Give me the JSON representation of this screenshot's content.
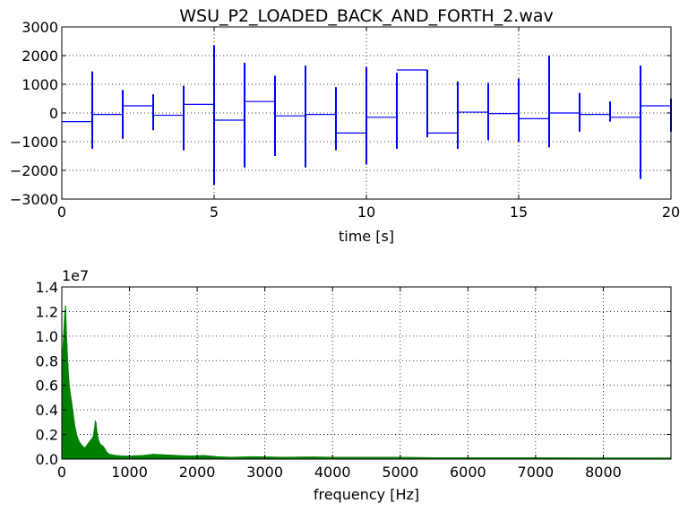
{
  "chart_data": [
    {
      "type": "line",
      "title": "WSU_P2_LOADED_BACK_AND_FORTH_2.wav",
      "xlabel": "time [s]",
      "ylabel": "",
      "xlim": [
        0,
        20
      ],
      "ylim": [
        -3000,
        3000
      ],
      "xticks": [
        "0",
        "5",
        "10",
        "15",
        "20"
      ],
      "yticks": [
        "−3000",
        "−2000",
        "−1000",
        "0",
        "1000",
        "2000",
        "3000"
      ],
      "grid": true,
      "color": "#0000ff",
      "segments": [
        {
          "x0": 0,
          "x1": 1,
          "level": -300
        },
        {
          "x0": 1,
          "x1": 2,
          "level": -50
        },
        {
          "x0": 2,
          "x1": 3,
          "level": 250
        },
        {
          "x0": 3,
          "x1": 4,
          "level": -80
        },
        {
          "x0": 4,
          "x1": 5,
          "level": 300
        },
        {
          "x0": 5,
          "x1": 6,
          "level": -250
        },
        {
          "x0": 6,
          "x1": 7,
          "level": 400
        },
        {
          "x0": 7,
          "x1": 8,
          "level": -100
        },
        {
          "x0": 8,
          "x1": 9,
          "level": -50
        },
        {
          "x0": 9,
          "x1": 10,
          "level": -700
        },
        {
          "x0": 10,
          "x1": 11,
          "level": -150
        },
        {
          "x0": 11,
          "x1": 12,
          "level": 1500
        },
        {
          "x0": 12,
          "x1": 13,
          "level": -700
        },
        {
          "x0": 13,
          "x1": 14,
          "level": 30
        },
        {
          "x0": 14,
          "x1": 15,
          "level": -20
        },
        {
          "x0": 15,
          "x1": 16,
          "level": -200
        },
        {
          "x0": 16,
          "x1": 17,
          "level": 0
        },
        {
          "x0": 17,
          "x1": 18,
          "level": -50
        },
        {
          "x0": 18,
          "x1": 19,
          "level": -150
        },
        {
          "x0": 19,
          "x1": 20,
          "level": 250
        }
      ],
      "spikes": [
        {
          "x": 1,
          "min": -1250,
          "max": 1450
        },
        {
          "x": 2,
          "min": -900,
          "max": 800
        },
        {
          "x": 3,
          "min": -600,
          "max": 650
        },
        {
          "x": 4,
          "min": -1300,
          "max": 950
        },
        {
          "x": 5,
          "min": -2500,
          "max": 2350
        },
        {
          "x": 6,
          "min": -1900,
          "max": 1750
        },
        {
          "x": 7,
          "min": -1500,
          "max": 1300
        },
        {
          "x": 8,
          "min": -1900,
          "max": 1650
        },
        {
          "x": 9,
          "min": -1300,
          "max": 900
        },
        {
          "x": 10,
          "min": -1800,
          "max": 1600
        },
        {
          "x": 11,
          "min": -1250,
          "max": 1400
        },
        {
          "x": 12,
          "min": -850,
          "max": 1500
        },
        {
          "x": 13,
          "min": -1250,
          "max": 1100
        },
        {
          "x": 14,
          "min": -950,
          "max": 1050
        },
        {
          "x": 15,
          "min": -1000,
          "max": 1200
        },
        {
          "x": 16,
          "min": -1200,
          "max": 2000
        },
        {
          "x": 17,
          "min": -650,
          "max": 700
        },
        {
          "x": 18,
          "min": -300,
          "max": 400
        },
        {
          "x": 19,
          "min": -2300,
          "max": 1650
        },
        {
          "x": 20,
          "min": -650,
          "max": 500
        }
      ]
    },
    {
      "type": "area",
      "title": "",
      "xlabel": "frequency [Hz]",
      "ylabel": "",
      "offset_label": "1e7",
      "xlim": [
        0,
        9000
      ],
      "ylim": [
        0,
        1.4
      ],
      "xticks": [
        "0",
        "1000",
        "2000",
        "3000",
        "4000",
        "5000",
        "6000",
        "7000",
        "8000"
      ],
      "yticks": [
        "0.0",
        "0.2",
        "0.4",
        "0.6",
        "0.8",
        "1.0",
        "1.2",
        "1.4"
      ],
      "grid": true,
      "color": "#008000",
      "envelope": [
        [
          0,
          0.45
        ],
        [
          15,
          0.9
        ],
        [
          30,
          1.05
        ],
        [
          45,
          1.2
        ],
        [
          55,
          1.25
        ],
        [
          65,
          1.1
        ],
        [
          75,
          0.95
        ],
        [
          90,
          0.78
        ],
        [
          110,
          0.6
        ],
        [
          130,
          0.52
        ],
        [
          150,
          0.45
        ],
        [
          180,
          0.32
        ],
        [
          200,
          0.25
        ],
        [
          230,
          0.18
        ],
        [
          260,
          0.14
        ],
        [
          300,
          0.11
        ],
        [
          340,
          0.09
        ],
        [
          380,
          0.12
        ],
        [
          420,
          0.15
        ],
        [
          460,
          0.18
        ],
        [
          480,
          0.24
        ],
        [
          495,
          0.31
        ],
        [
          505,
          0.3
        ],
        [
          520,
          0.22
        ],
        [
          545,
          0.15
        ],
        [
          570,
          0.12
        ],
        [
          600,
          0.11
        ],
        [
          630,
          0.09
        ],
        [
          660,
          0.06
        ],
        [
          700,
          0.04
        ],
        [
          800,
          0.03
        ],
        [
          900,
          0.025
        ],
        [
          1000,
          0.025
        ],
        [
          1200,
          0.03
        ],
        [
          1350,
          0.04
        ],
        [
          1500,
          0.035
        ],
        [
          1700,
          0.03
        ],
        [
          1900,
          0.025
        ],
        [
          2100,
          0.03
        ],
        [
          2300,
          0.02
        ],
        [
          2500,
          0.015
        ],
        [
          2800,
          0.02
        ],
        [
          3000,
          0.018
        ],
        [
          3300,
          0.015
        ],
        [
          3700,
          0.018
        ],
        [
          4000,
          0.015
        ],
        [
          4500,
          0.015
        ],
        [
          5000,
          0.015
        ],
        [
          5500,
          0.012
        ],
        [
          6000,
          0.012
        ],
        [
          7000,
          0.012
        ],
        [
          8000,
          0.01
        ],
        [
          9000,
          0.01
        ]
      ]
    }
  ]
}
